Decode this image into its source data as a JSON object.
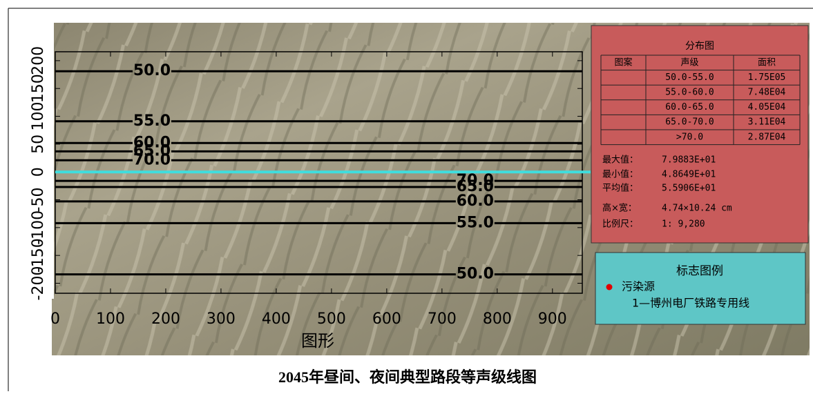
{
  "chart_data": {
    "type": "contour",
    "title": "2045年昼间、夜间典型路段等声级线图",
    "xlabel": "图形",
    "xlim": [
      0,
      954
    ],
    "ylim": [
      -218,
      216
    ],
    "xticks": [
      0,
      100,
      200,
      300,
      400,
      500,
      600,
      700,
      800,
      900
    ],
    "yticks": [
      200,
      150,
      100,
      50,
      0,
      -50,
      -100,
      -150,
      -200
    ],
    "contour_color": "#000000",
    "contours": [
      {
        "label": "50.0",
        "y": 181,
        "label_x": 175
      },
      {
        "label": "55.0",
        "y": 91,
        "label_x": 175
      },
      {
        "label": "60.0",
        "y": 52,
        "label_x": 175
      },
      {
        "label": "65.0",
        "y": 37,
        "label_x": 175
      },
      {
        "label": "70.0",
        "y": 21,
        "label_x": 175
      },
      {
        "label": "70.0",
        "y": -16,
        "label_x": 760
      },
      {
        "label": "65.0",
        "y": -27,
        "label_x": 760
      },
      {
        "label": "60.0",
        "y": -53,
        "label_x": 760
      },
      {
        "label": "55.0",
        "y": -92,
        "label_x": 760
      },
      {
        "label": "50.0",
        "y": -184,
        "label_x": 760
      }
    ],
    "source_line": {
      "y": 0,
      "color": "#3fdede"
    }
  },
  "distribution": {
    "title": "分布图",
    "header": [
      "图案",
      "声级",
      "面积"
    ],
    "rows": [
      [
        "50.0-55.0",
        "1.75E05"
      ],
      [
        "55.0-60.0",
        "7.48E04"
      ],
      [
        "60.0-65.0",
        "4.05E04"
      ],
      [
        "65.0-70.0",
        "3.11E04"
      ],
      [
        ">70.0",
        "2.87E04"
      ]
    ],
    "stats": [
      [
        "最大值：",
        "7.9883E+01"
      ],
      [
        "最小值：",
        "4.8649E+01"
      ],
      [
        "平均值：",
        "5.5906E+01"
      ],
      [
        "高×宽：",
        "4.74×10.24 cm"
      ],
      [
        "比例尺：",
        "1: 9,280"
      ]
    ]
  },
  "legend_box": {
    "title": "标志图例",
    "items": [
      "污染源",
      "1—博州电厂铁路专用线"
    ]
  }
}
